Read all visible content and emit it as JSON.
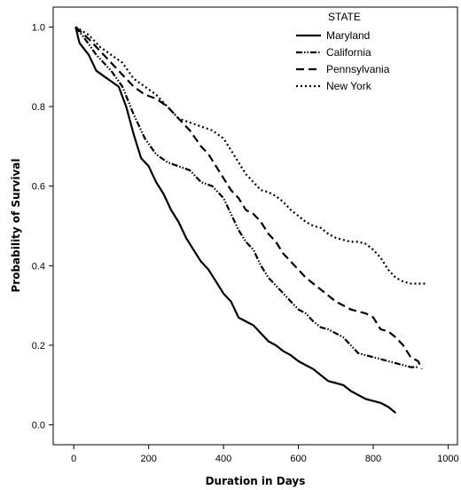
{
  "chart_data": {
    "type": "line",
    "title": "",
    "xlabel": "Duration in Days",
    "ylabel": "Probability of Survival",
    "xlim": [
      -55,
      1025
    ],
    "ylim": [
      -0.05,
      1.05
    ],
    "xticks": [
      0,
      200,
      400,
      600,
      800,
      1000
    ],
    "yticks": [
      0.0,
      0.2,
      0.4,
      0.6,
      0.8,
      1.0
    ],
    "xtick_labels": [
      "0",
      "200",
      "400",
      "600",
      "800",
      "1000"
    ],
    "ytick_labels": [
      "0.0",
      "0.2",
      "0.4",
      "0.6",
      "0.8",
      "1.0"
    ],
    "grid": false,
    "legend": {
      "title": "STATE",
      "position": "top-right"
    },
    "series": [
      {
        "name": "Maryland",
        "style": "solid",
        "points": [
          [
            5,
            1.0
          ],
          [
            15,
            0.96
          ],
          [
            40,
            0.93
          ],
          [
            60,
            0.89
          ],
          [
            90,
            0.87
          ],
          [
            120,
            0.85
          ],
          [
            140,
            0.8
          ],
          [
            160,
            0.73
          ],
          [
            180,
            0.67
          ],
          [
            200,
            0.65
          ],
          [
            220,
            0.61
          ],
          [
            240,
            0.58
          ],
          [
            260,
            0.54
          ],
          [
            280,
            0.51
          ],
          [
            300,
            0.47
          ],
          [
            320,
            0.44
          ],
          [
            340,
            0.41
          ],
          [
            360,
            0.39
          ],
          [
            380,
            0.36
          ],
          [
            400,
            0.33
          ],
          [
            420,
            0.31
          ],
          [
            440,
            0.27
          ],
          [
            460,
            0.26
          ],
          [
            480,
            0.25
          ],
          [
            500,
            0.23
          ],
          [
            520,
            0.21
          ],
          [
            540,
            0.2
          ],
          [
            560,
            0.185
          ],
          [
            580,
            0.175
          ],
          [
            600,
            0.16
          ],
          [
            620,
            0.15
          ],
          [
            640,
            0.14
          ],
          [
            660,
            0.125
          ],
          [
            680,
            0.11
          ],
          [
            700,
            0.105
          ],
          [
            720,
            0.1
          ],
          [
            740,
            0.085
          ],
          [
            760,
            0.075
          ],
          [
            780,
            0.065
          ],
          [
            800,
            0.06
          ],
          [
            820,
            0.055
          ],
          [
            840,
            0.045
          ],
          [
            860,
            0.03
          ]
        ]
      },
      {
        "name": "California",
        "style": "dash-dot-dot",
        "points": [
          [
            5,
            1.0
          ],
          [
            30,
            0.97
          ],
          [
            60,
            0.93
          ],
          [
            100,
            0.89
          ],
          [
            130,
            0.85
          ],
          [
            160,
            0.78
          ],
          [
            190,
            0.72
          ],
          [
            220,
            0.68
          ],
          [
            250,
            0.66
          ],
          [
            280,
            0.65
          ],
          [
            310,
            0.64
          ],
          [
            340,
            0.61
          ],
          [
            370,
            0.6
          ],
          [
            400,
            0.57
          ],
          [
            420,
            0.53
          ],
          [
            440,
            0.49
          ],
          [
            460,
            0.46
          ],
          [
            480,
            0.44
          ],
          [
            500,
            0.4
          ],
          [
            520,
            0.37
          ],
          [
            540,
            0.35
          ],
          [
            560,
            0.33
          ],
          [
            580,
            0.31
          ],
          [
            600,
            0.29
          ],
          [
            620,
            0.28
          ],
          [
            640,
            0.26
          ],
          [
            660,
            0.245
          ],
          [
            680,
            0.24
          ],
          [
            700,
            0.23
          ],
          [
            720,
            0.22
          ],
          [
            740,
            0.2
          ],
          [
            760,
            0.18
          ],
          [
            780,
            0.175
          ],
          [
            800,
            0.17
          ],
          [
            820,
            0.165
          ],
          [
            840,
            0.16
          ],
          [
            860,
            0.155
          ],
          [
            880,
            0.15
          ],
          [
            900,
            0.145
          ],
          [
            920,
            0.145
          ]
        ]
      },
      {
        "name": "Pennsylvania",
        "style": "long-dash",
        "points": [
          [
            5,
            1.0
          ],
          [
            40,
            0.97
          ],
          [
            70,
            0.94
          ],
          [
            100,
            0.91
          ],
          [
            130,
            0.88
          ],
          [
            160,
            0.85
          ],
          [
            190,
            0.83
          ],
          [
            220,
            0.82
          ],
          [
            250,
            0.8
          ],
          [
            280,
            0.77
          ],
          [
            310,
            0.74
          ],
          [
            340,
            0.7
          ],
          [
            360,
            0.68
          ],
          [
            380,
            0.65
          ],
          [
            400,
            0.62
          ],
          [
            420,
            0.59
          ],
          [
            440,
            0.57
          ],
          [
            460,
            0.54
          ],
          [
            480,
            0.53
          ],
          [
            500,
            0.51
          ],
          [
            520,
            0.48
          ],
          [
            540,
            0.46
          ],
          [
            560,
            0.43
          ],
          [
            580,
            0.41
          ],
          [
            600,
            0.39
          ],
          [
            620,
            0.37
          ],
          [
            640,
            0.355
          ],
          [
            660,
            0.34
          ],
          [
            680,
            0.325
          ],
          [
            700,
            0.31
          ],
          [
            720,
            0.3
          ],
          [
            740,
            0.29
          ],
          [
            760,
            0.285
          ],
          [
            780,
            0.28
          ],
          [
            800,
            0.27
          ],
          [
            820,
            0.24
          ],
          [
            840,
            0.235
          ],
          [
            860,
            0.22
          ],
          [
            880,
            0.2
          ],
          [
            900,
            0.17
          ],
          [
            920,
            0.16
          ],
          [
            930,
            0.14
          ]
        ]
      },
      {
        "name": "New York",
        "style": "dotted",
        "points": [
          [
            5,
            1.0
          ],
          [
            40,
            0.98
          ],
          [
            70,
            0.95
          ],
          [
            100,
            0.93
          ],
          [
            130,
            0.91
          ],
          [
            160,
            0.87
          ],
          [
            190,
            0.85
          ],
          [
            220,
            0.83
          ],
          [
            250,
            0.8
          ],
          [
            280,
            0.77
          ],
          [
            310,
            0.76
          ],
          [
            340,
            0.75
          ],
          [
            370,
            0.74
          ],
          [
            400,
            0.72
          ],
          [
            420,
            0.69
          ],
          [
            440,
            0.66
          ],
          [
            460,
            0.63
          ],
          [
            480,
            0.61
          ],
          [
            500,
            0.59
          ],
          [
            520,
            0.585
          ],
          [
            540,
            0.575
          ],
          [
            560,
            0.56
          ],
          [
            580,
            0.54
          ],
          [
            600,
            0.525
          ],
          [
            620,
            0.51
          ],
          [
            640,
            0.5
          ],
          [
            660,
            0.495
          ],
          [
            680,
            0.48
          ],
          [
            700,
            0.47
          ],
          [
            720,
            0.465
          ],
          [
            740,
            0.46
          ],
          [
            760,
            0.46
          ],
          [
            780,
            0.455
          ],
          [
            800,
            0.44
          ],
          [
            820,
            0.42
          ],
          [
            840,
            0.39
          ],
          [
            860,
            0.37
          ],
          [
            880,
            0.36
          ],
          [
            900,
            0.355
          ],
          [
            920,
            0.355
          ],
          [
            940,
            0.355
          ]
        ]
      }
    ]
  }
}
